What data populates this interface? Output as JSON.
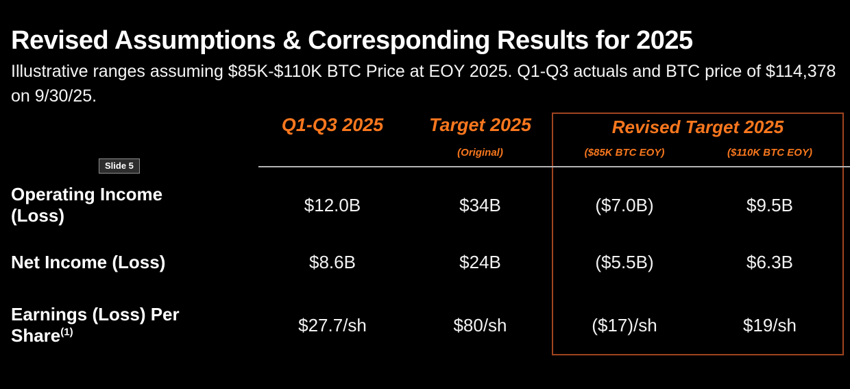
{
  "colors": {
    "background": "#000000",
    "accent_orange": "#F8771E",
    "revised_box_border": "#A0441F",
    "header_separator_gray": "#B5B5B5",
    "text_white": "#FFFFFF"
  },
  "slide": {
    "title": "Revised Assumptions & Corresponding Results for 2025",
    "subtitle": "Illustrative ranges assuming $85K-$110K BTC Price at EOY 2025. Q1-Q3 actuals and BTC price of $114,378 on 9/30/25.",
    "slide_badge": "Slide 5"
  },
  "table": {
    "headers": {
      "q1q3": "Q1-Q3 2025",
      "target": "Target 2025",
      "target_sub": "(Original)",
      "revised_group": "Revised Target 2025",
      "revised_85k": "($85K BTC EOY)",
      "revised_110k": "($110K BTC EOY)"
    },
    "rows": [
      {
        "label": "Operating Income (Loss)",
        "label_sup": "",
        "q1q3": "$12.0B",
        "target": "$34B",
        "revised_85k": "($7.0B)",
        "revised_110k": "$9.5B"
      },
      {
        "label": "Net Income (Loss)",
        "label_sup": "",
        "q1q3": "$8.6B",
        "target": "$24B",
        "revised_85k": "($5.5B)",
        "revised_110k": "$6.3B"
      },
      {
        "label": "Earnings (Loss) Per Share",
        "label_sup": "(1)",
        "q1q3": "$27.7/sh",
        "target": "$80/sh",
        "revised_85k": "($17)/sh",
        "revised_110k": "$19/sh"
      }
    ]
  }
}
